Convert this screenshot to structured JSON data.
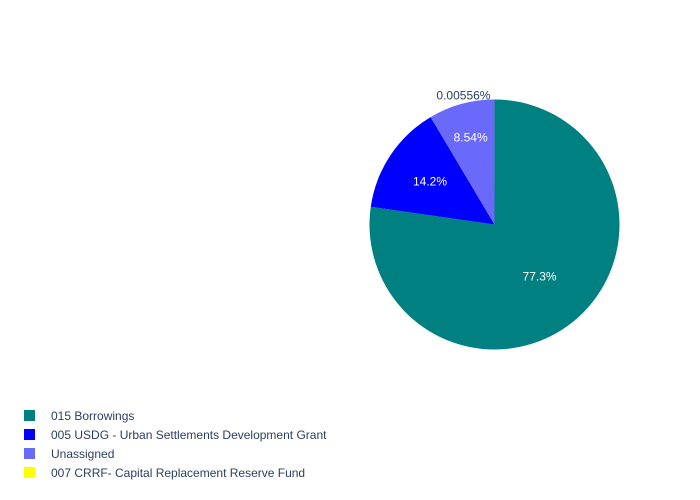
{
  "chart_data": {
    "type": "pie",
    "categories": [
      "015 Borrowings",
      "005 USDG - Urban Settlements Development Grant",
      "Unassigned",
      "007 CRRF- Capital Replacement Reserve Fund"
    ],
    "values": [
      77.3,
      14.2,
      8.54,
      0.00556
    ],
    "data_labels": [
      "77.3%",
      "14.2%",
      "8.54%",
      "0.00556%"
    ],
    "colors": [
      "#008080",
      "#0000ff",
      "#6a6afa",
      "#ffff00"
    ],
    "label_colors": [
      "#ffffff",
      "#ffffff",
      "#ffffff",
      "#2a3f5f"
    ],
    "legend_position": "bottom-left",
    "direction": "clockwise",
    "start": "top"
  }
}
